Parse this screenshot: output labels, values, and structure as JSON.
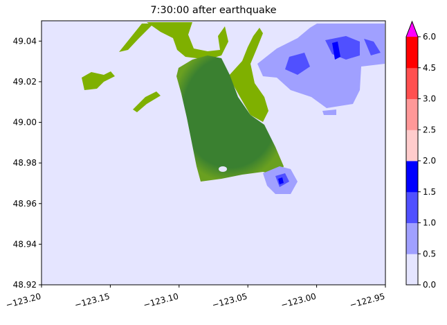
{
  "chart_data": {
    "type": "heatmap",
    "title": "7:30:00 after earthquake",
    "xlabel": "",
    "ylabel": "",
    "xlim": [
      -123.2,
      -122.95
    ],
    "ylim": [
      48.92,
      49.05
    ],
    "x_ticks": [
      -123.2,
      -123.15,
      -123.1,
      -123.05,
      -123.0,
      -122.95
    ],
    "x_tick_labels": [
      "−123.20",
      "−123.15",
      "−123.10",
      "−123.05",
      "−123.00",
      "−122.95"
    ],
    "y_ticks": [
      48.92,
      48.94,
      48.96,
      48.98,
      49.0,
      49.02,
      49.04
    ],
    "y_tick_labels": [
      "48.92",
      "48.94",
      "48.96",
      "48.98",
      "49.00",
      "49.02",
      "49.04"
    ],
    "background_color": "#e5e5ff",
    "colorbar": {
      "levels": [
        0.0,
        0.5,
        1.0,
        1.5,
        2.0,
        2.5,
        3.0,
        4.5,
        6.0
      ],
      "tick_labels": [
        "0.0",
        "0.5",
        "1.0",
        "1.5",
        "2.0",
        "2.5",
        "3.0",
        "4.5",
        "6.0"
      ],
      "colors": [
        "#e5e5ff",
        "#a0a0ff",
        "#5050ff",
        "#0000ff",
        "#ffcccc",
        "#ff9898",
        "#ff5050",
        "#ff0000"
      ],
      "extend_max_color": "#ff00ff",
      "extend": "max"
    },
    "land_colors": [
      "#7fb000",
      "#3a8030"
    ]
  }
}
